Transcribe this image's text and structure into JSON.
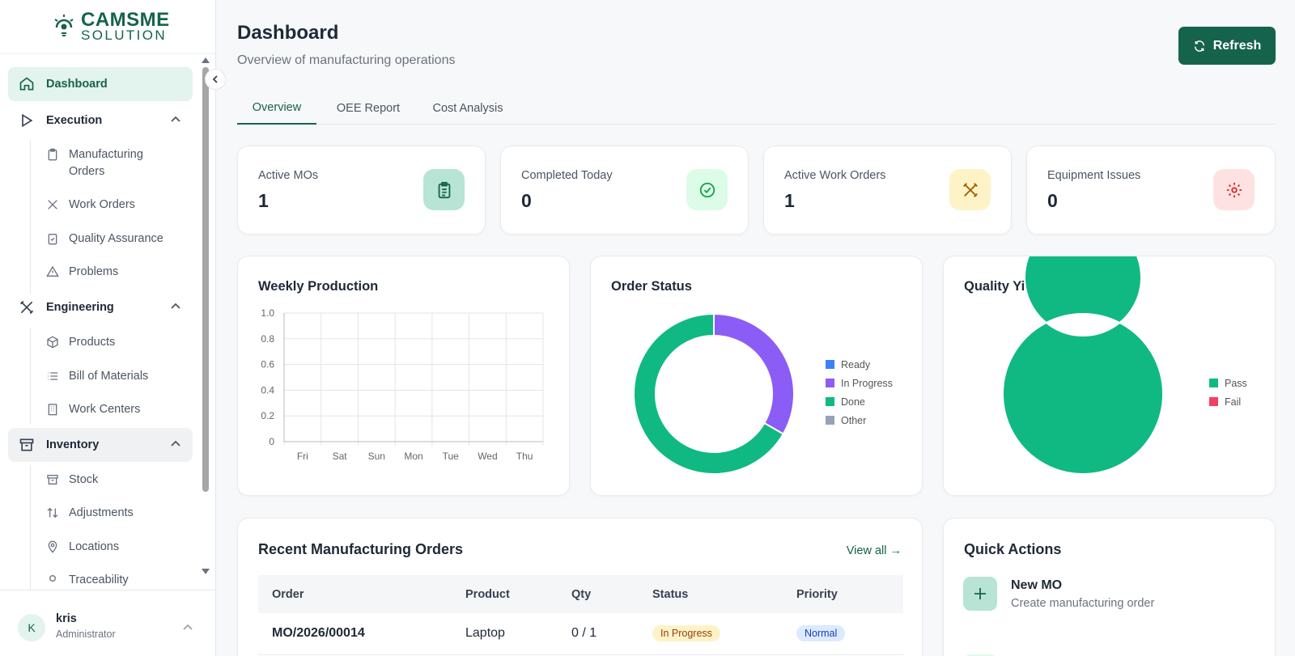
{
  "brand": {
    "line1": "CAMSME",
    "line2": "SOLUTION"
  },
  "sidebar": {
    "dashboard": "Dashboard",
    "execution": {
      "label": "Execution",
      "items": [
        "Manufacturing Orders",
        "Work Orders",
        "Quality Assurance",
        "Problems"
      ]
    },
    "engineering": {
      "label": "Engineering",
      "items": [
        "Products",
        "Bill of Materials",
        "Work Centers"
      ]
    },
    "inventory": {
      "label": "Inventory",
      "items": [
        "Stock",
        "Adjustments",
        "Locations",
        "Traceability"
      ]
    }
  },
  "user": {
    "initial": "K",
    "name": "kris",
    "role": "Administrator"
  },
  "header": {
    "title": "Dashboard",
    "subtitle": "Overview of manufacturing operations",
    "refresh_label": "Refresh"
  },
  "tabs": [
    "Overview",
    "OEE Report",
    "Cost Analysis"
  ],
  "stats": [
    {
      "label": "Active MOs",
      "value": "1",
      "icon": "clipboard-icon",
      "color": "#16634b",
      "bg": "#b7e4d5"
    },
    {
      "label": "Completed Today",
      "value": "0",
      "icon": "check-circle-icon",
      "color": "#16a34a",
      "bg": "#dcfce7"
    },
    {
      "label": "Active Work Orders",
      "value": "1",
      "icon": "tools-icon",
      "color": "#a16207",
      "bg": "#fef3c7"
    },
    {
      "label": "Equipment Issues",
      "value": "0",
      "icon": "gear-icon",
      "color": "#dc2626",
      "bg": "#fee2e2"
    }
  ],
  "charts": {
    "weekly_title": "Weekly Production",
    "order_status_title": "Order Status",
    "quality_title": "Quality Yield"
  },
  "chart_data": [
    {
      "type": "bar",
      "title": "Weekly Production",
      "categories": [
        "Fri",
        "Sat",
        "Sun",
        "Mon",
        "Tue",
        "Wed",
        "Thu"
      ],
      "values": [
        0,
        0,
        0,
        0,
        0,
        0,
        0
      ],
      "yticks": [
        "1.0",
        "0.8",
        "0.6",
        "0.4",
        "0.2",
        "0"
      ],
      "ylim": [
        0,
        1
      ],
      "grid": true
    },
    {
      "type": "pie",
      "title": "Order Status",
      "labels": [
        "Ready",
        "In Progress",
        "Done",
        "Other"
      ],
      "values": [
        0,
        1,
        2,
        0
      ],
      "colors": [
        "#3b82f6",
        "#8b5cf6",
        "#10b981",
        "#94a3b8"
      ],
      "legend": "right"
    },
    {
      "type": "pie",
      "title": "Quality Yield",
      "labels": [
        "Pass",
        "Fail"
      ],
      "values": [
        1,
        0
      ],
      "colors": [
        "#10b981",
        "#f43f5e"
      ],
      "legend": "right"
    }
  ],
  "recent": {
    "title": "Recent Manufacturing Orders",
    "view_all": "View all →",
    "columns": [
      "Order",
      "Product",
      "Qty",
      "Status",
      "Priority"
    ],
    "rows": [
      {
        "order": "MO/2026/00014",
        "product": "Laptop",
        "qty": "0 / 1",
        "status": "In Progress",
        "priority": "Normal"
      }
    ]
  },
  "quick_actions": {
    "title": "Quick Actions",
    "items": [
      {
        "label": "New MO",
        "desc": "Create manufacturing order"
      }
    ]
  }
}
